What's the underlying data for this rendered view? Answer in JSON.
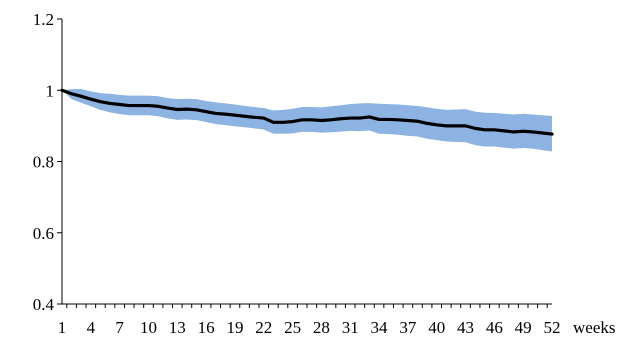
{
  "chart_data": {
    "type": "line",
    "title": "",
    "xlabel": "weeks",
    "ylabel": "",
    "ylim": [
      0.4,
      1.2
    ],
    "yticks": [
      0.4,
      0.6,
      0.8,
      1,
      1.2
    ],
    "ytick_labels": [
      "0.4",
      "0.6",
      "0.8",
      "1",
      "1.2"
    ],
    "xlim": [
      1,
      52
    ],
    "xticks": [
      1,
      4,
      7,
      10,
      13,
      16,
      19,
      22,
      25,
      28,
      31,
      34,
      37,
      40,
      43,
      46,
      49,
      52
    ],
    "xtick_labels": [
      "1",
      "4",
      "7",
      "10",
      "13",
      "16",
      "19",
      "22",
      "25",
      "28",
      "31",
      "34",
      "37",
      "40",
      "43",
      "46",
      "49",
      "52"
    ],
    "grid": false,
    "legend": "none",
    "x": [
      1,
      2,
      3,
      4,
      5,
      6,
      7,
      8,
      9,
      10,
      11,
      12,
      13,
      14,
      15,
      16,
      17,
      18,
      19,
      20,
      21,
      22,
      23,
      24,
      25,
      26,
      27,
      28,
      29,
      30,
      31,
      32,
      33,
      34,
      35,
      36,
      37,
      38,
      39,
      40,
      41,
      42,
      43,
      44,
      45,
      46,
      47,
      48,
      49,
      50,
      51,
      52
    ],
    "series": [
      {
        "values": [
          1.0,
          0.99,
          0.983,
          0.975,
          0.968,
          0.963,
          0.96,
          0.957,
          0.957,
          0.957,
          0.955,
          0.95,
          0.946,
          0.947,
          0.945,
          0.94,
          0.935,
          0.933,
          0.93,
          0.927,
          0.924,
          0.922,
          0.91,
          0.91,
          0.912,
          0.917,
          0.917,
          0.915,
          0.917,
          0.92,
          0.922,
          0.922,
          0.925,
          0.918,
          0.918,
          0.917,
          0.915,
          0.913,
          0.907,
          0.903,
          0.9,
          0.9,
          0.9,
          0.893,
          0.889,
          0.889,
          0.886,
          0.883,
          0.885,
          0.883,
          0.88,
          0.877
        ],
        "color": "#000000"
      }
    ],
    "band": {
      "color": "#8db3e2",
      "upper": [
        1.0,
        1.003,
        1.003,
        0.997,
        0.992,
        0.99,
        0.987,
        0.985,
        0.985,
        0.985,
        0.983,
        0.978,
        0.975,
        0.976,
        0.975,
        0.97,
        0.966,
        0.963,
        0.96,
        0.956,
        0.953,
        0.95,
        0.943,
        0.945,
        0.948,
        0.953,
        0.953,
        0.952,
        0.955,
        0.958,
        0.961,
        0.963,
        0.964,
        0.962,
        0.961,
        0.96,
        0.958,
        0.956,
        0.952,
        0.948,
        0.945,
        0.946,
        0.947,
        0.94,
        0.937,
        0.936,
        0.934,
        0.932,
        0.934,
        0.932,
        0.93,
        0.928
      ],
      "lower": [
        1.0,
        0.975,
        0.965,
        0.955,
        0.945,
        0.938,
        0.933,
        0.93,
        0.93,
        0.93,
        0.927,
        0.921,
        0.917,
        0.918,
        0.916,
        0.911,
        0.905,
        0.902,
        0.899,
        0.896,
        0.893,
        0.89,
        0.878,
        0.878,
        0.879,
        0.883,
        0.883,
        0.881,
        0.882,
        0.884,
        0.886,
        0.885,
        0.887,
        0.878,
        0.877,
        0.875,
        0.872,
        0.87,
        0.864,
        0.86,
        0.856,
        0.855,
        0.854,
        0.846,
        0.842,
        0.842,
        0.839,
        0.836,
        0.838,
        0.836,
        0.832,
        0.828
      ]
    }
  }
}
